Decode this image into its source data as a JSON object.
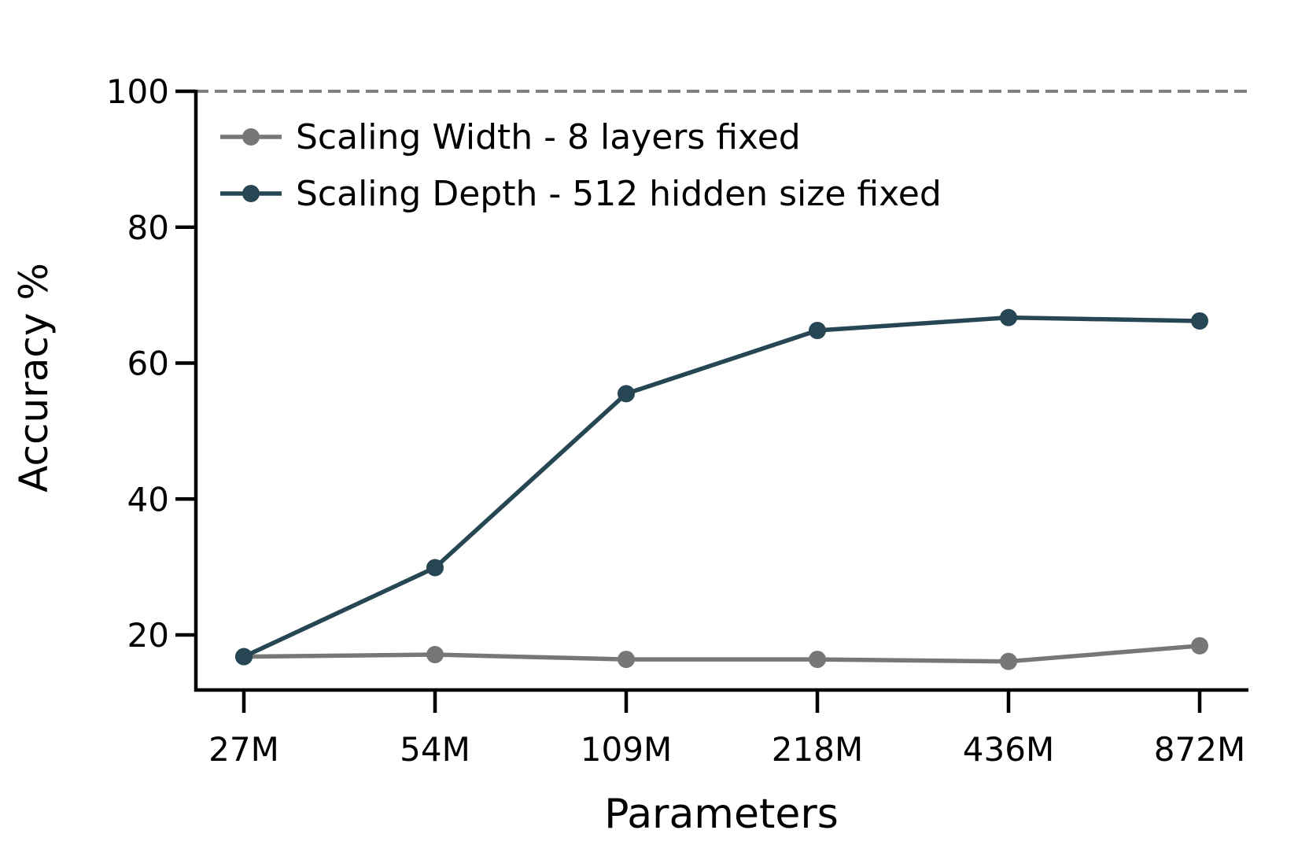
{
  "chart_data": {
    "type": "line",
    "title": "",
    "xlabel": "Parameters",
    "ylabel": "Accuracy %",
    "categories": [
      "27M",
      "54M",
      "109M",
      "218M",
      "436M",
      "872M"
    ],
    "yticks": [
      20,
      40,
      60,
      80,
      100
    ],
    "ylim": [
      12,
      100
    ],
    "grid": false,
    "legend_position": "top-left",
    "reference_line": {
      "y": 100,
      "style": "dashed",
      "color": "#808080"
    },
    "series": [
      {
        "name": "Scaling Width - 8 layers fixed",
        "color": "#777777",
        "values": [
          16.8,
          17.1,
          16.4,
          16.4,
          16.1,
          18.4
        ]
      },
      {
        "name": "Scaling Depth - 512 hidden size fixed",
        "color": "#264653",
        "values": [
          16.8,
          29.9,
          55.5,
          64.8,
          66.7,
          66.2
        ]
      }
    ]
  }
}
